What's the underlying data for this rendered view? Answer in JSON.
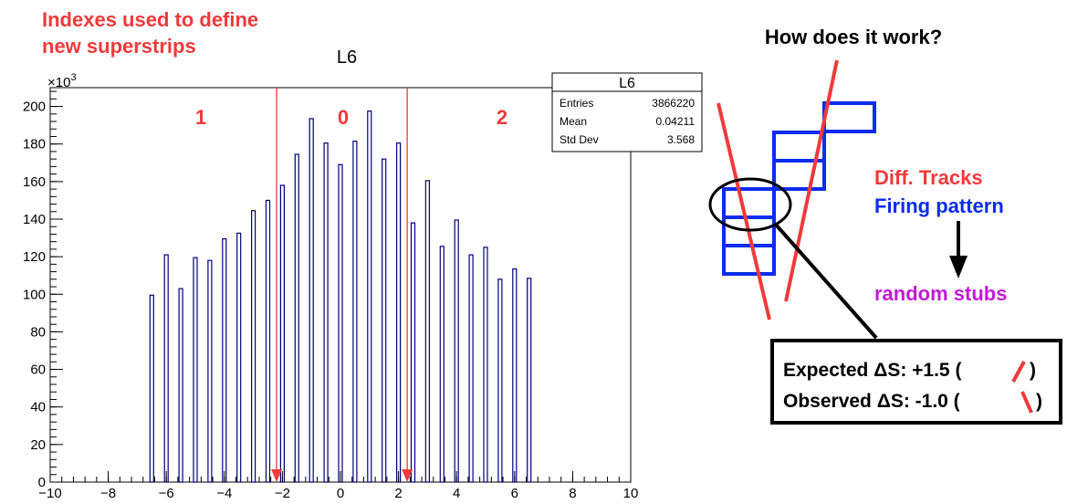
{
  "annotations": {
    "index_line1": "Indexes used to define",
    "index_line2": "new superstrips",
    "region_1": "1",
    "region_0": "0",
    "region_2": "2",
    "how_title": "How does it work?",
    "diff_tracks": "Diff. Tracks",
    "firing_pattern": "Firing pattern",
    "random_stubs": "random stubs",
    "expected_prefix": "Expected ",
    "expected_value": "S: +1.5 (",
    "observed_prefix": "Observed ",
    "observed_value": "S: -1.0 (",
    "close_paren": ")",
    "delta_symbol": "Δ"
  },
  "colors": {
    "annotation_red": "#f03a3a",
    "histogram_line": "#00007a",
    "firing_blue": "#0b2cf0",
    "random_magenta": "#c21ad6"
  },
  "chart_data": {
    "type": "bar",
    "title": "L6",
    "xlim": [
      -10,
      10
    ],
    "ylim": [
      0,
      210
    ],
    "y_exponent_label": "×10",
    "y_exponent_power": "3",
    "x_ticks": [
      -10,
      -8,
      -6,
      -4,
      -2,
      0,
      2,
      4,
      6,
      8,
      10
    ],
    "x_tick_labels": [
      "−10",
      "−8",
      "−6",
      "−4",
      "−2",
      "0",
      "2",
      "4",
      "6",
      "8",
      "10"
    ],
    "y_ticks": [
      0,
      20,
      40,
      60,
      80,
      100,
      120,
      140,
      160,
      180,
      200
    ],
    "y_tick_labels": [
      "0",
      "20",
      "40",
      "60",
      "80",
      "100",
      "120",
      "140",
      "160",
      "180",
      "200"
    ],
    "x": [
      -6.5,
      -6,
      -5.5,
      -5,
      -4.5,
      -4,
      -3.5,
      -3,
      -2.5,
      -2,
      -1.5,
      -1,
      -0.5,
      0,
      0.5,
      1,
      1.5,
      2,
      2.5,
      3,
      3.5,
      4,
      4.5,
      5,
      5.5,
      6,
      6.5
    ],
    "values": [
      99.5,
      121,
      103,
      119.5,
      118,
      129.5,
      132.5,
      144.5,
      150,
      158,
      174.5,
      193.5,
      180.5,
      169,
      181.5,
      197.5,
      172,
      180.5,
      138,
      160.5,
      125.5,
      139.5,
      121,
      125,
      108,
      113.5,
      108.5
    ],
    "markers": [
      -2.2,
      2.3
    ],
    "stats": {
      "title": "L6",
      "rows": [
        {
          "label": "Entries",
          "value": "3866220"
        },
        {
          "label": "Mean",
          "value": "0.04211"
        },
        {
          "label": "Std Dev",
          "value": "3.568"
        }
      ]
    }
  }
}
